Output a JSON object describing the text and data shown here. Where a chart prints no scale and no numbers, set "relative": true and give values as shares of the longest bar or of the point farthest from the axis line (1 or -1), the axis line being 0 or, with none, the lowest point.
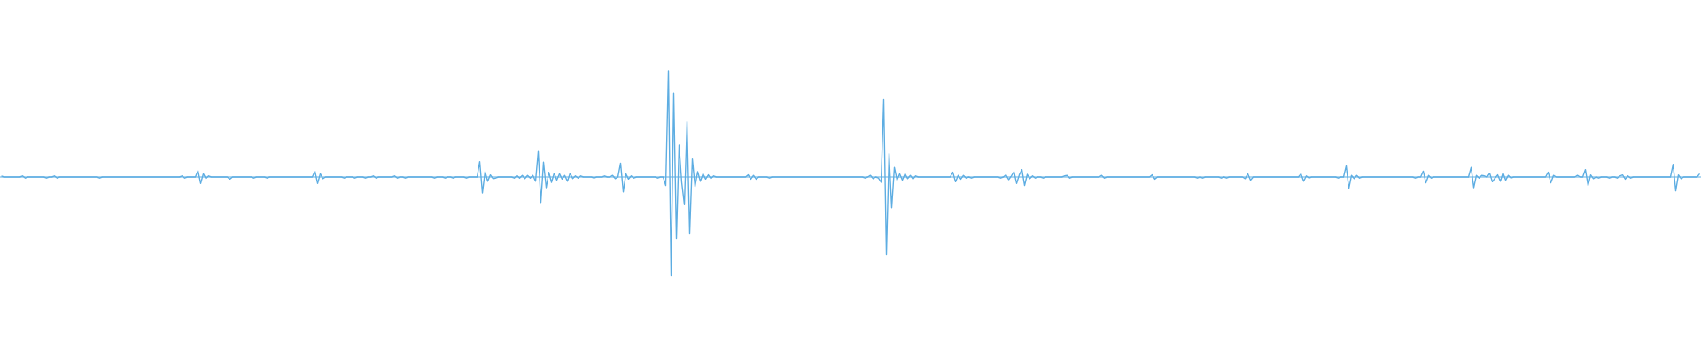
{
  "chart_data": {
    "type": "line",
    "relative": true,
    "ref_lines": [
      {
        "axis": "y",
        "value": 0,
        "color": "#5dade2"
      }
    ],
    "categories": [
      null,
      null,
      null,
      null,
      null,
      null,
      null,
      null,
      null,
      null,
      null,
      null,
      null,
      null,
      null,
      null,
      null,
      null,
      null,
      null,
      null,
      null,
      null,
      null,
      null,
      null,
      null,
      null,
      null,
      null,
      null,
      null,
      null,
      null,
      null,
      null,
      null,
      null,
      null,
      null,
      null,
      null,
      null,
      null,
      null,
      null,
      null,
      null,
      null,
      null,
      null,
      null,
      null,
      null,
      null,
      null,
      null,
      null,
      null,
      null,
      null,
      null,
      null,
      null,
      null,
      null,
      null,
      null,
      null,
      null,
      null,
      null,
      null,
      null,
      null,
      null,
      null,
      null,
      null,
      null,
      null,
      null,
      null,
      null,
      null,
      null,
      null,
      null,
      null,
      null,
      null,
      null,
      null,
      null,
      null,
      null,
      null,
      null,
      null,
      null,
      null,
      null,
      null,
      null,
      null,
      null,
      null,
      null,
      null,
      null,
      null,
      null,
      null,
      null,
      null,
      null,
      null,
      null,
      null,
      null,
      null,
      null,
      null,
      null,
      null,
      null,
      null,
      null,
      null,
      null,
      null,
      null,
      null,
      null,
      null,
      null,
      null,
      null,
      null,
      null,
      null,
      null,
      null,
      null,
      null,
      null,
      null,
      null,
      null,
      null,
      null,
      null,
      null,
      null,
      null,
      null,
      null,
      null,
      null,
      null,
      null,
      null,
      null,
      null,
      null,
      null,
      null,
      null,
      null,
      null,
      null,
      null,
      null,
      null,
      null,
      null,
      null,
      null,
      null,
      null,
      null,
      null,
      null,
      null,
      null,
      null,
      null,
      null,
      null,
      null,
      null,
      null,
      null,
      null,
      null,
      null,
      null,
      null,
      null,
      null,
      null,
      null,
      null,
      null,
      null,
      null,
      null,
      null,
      null,
      null,
      null,
      null,
      null,
      null,
      null,
      null,
      null,
      null,
      null,
      null,
      null,
      null,
      null,
      null,
      null,
      null,
      null,
      null,
      null,
      null,
      null,
      null,
      null,
      null,
      null,
      null,
      null,
      null,
      null,
      null,
      null,
      null,
      null,
      null,
      null,
      null,
      null,
      null,
      null,
      null,
      null,
      null,
      null,
      null,
      null,
      null,
      null,
      null,
      null,
      null,
      null,
      null,
      null,
      null,
      null,
      null,
      null,
      null,
      null,
      null,
      null,
      null,
      null,
      null,
      null,
      null,
      null,
      null,
      null,
      null,
      null,
      null,
      null,
      null,
      null,
      null,
      null,
      null,
      null,
      null,
      null,
      null,
      null,
      null,
      null,
      null,
      null,
      null,
      null,
      null,
      null,
      null,
      null,
      null,
      null,
      null,
      null,
      null,
      null,
      null,
      null,
      null,
      null,
      null,
      null,
      null,
      null,
      null,
      null,
      null,
      null,
      null,
      null,
      null,
      null,
      null,
      null,
      null,
      null,
      null,
      null,
      null,
      null,
      null,
      null,
      null,
      null,
      null,
      null,
      null,
      null,
      null,
      null,
      null,
      null,
      null,
      null,
      null,
      null,
      null,
      null,
      null,
      null,
      null,
      null,
      null,
      null,
      null,
      null,
      null,
      null,
      null,
      null,
      null,
      null,
      null,
      null,
      null,
      null,
      null,
      null,
      null,
      null,
      null,
      null,
      null,
      null,
      null,
      null,
      null,
      null,
      null,
      null,
      null,
      null,
      null,
      null,
      null,
      null,
      null,
      null,
      null,
      null,
      null,
      null,
      null,
      null,
      null,
      null,
      null,
      null,
      null,
      null,
      null,
      null,
      null,
      null,
      null,
      null,
      null,
      null,
      null,
      null,
      null,
      null,
      null,
      null,
      null,
      null,
      null,
      null,
      null,
      null,
      null,
      null,
      null,
      null,
      null,
      null,
      null,
      null,
      null,
      null,
      null,
      null,
      null,
      null,
      null,
      null,
      null,
      null,
      null,
      null,
      null,
      null,
      null,
      null,
      null,
      null,
      null,
      null,
      null,
      null,
      null,
      null,
      null,
      null,
      null,
      null,
      null,
      null,
      null,
      null,
      null,
      null,
      null,
      null,
      null,
      null,
      null,
      null,
      null,
      null,
      null,
      null,
      null,
      null,
      null,
      null,
      null,
      null,
      null,
      null,
      null,
      null,
      null,
      null,
      null,
      null,
      null,
      null,
      null,
      null,
      null,
      null,
      null,
      null,
      null,
      null,
      null,
      null,
      null,
      null,
      null,
      null,
      null,
      null,
      null,
      null,
      null,
      null,
      null,
      null,
      null,
      null,
      null,
      null,
      null,
      null,
      null,
      null,
      null,
      null,
      null,
      null,
      null,
      null,
      null,
      null,
      null,
      null,
      null,
      null,
      null,
      null,
      null,
      null,
      null,
      null,
      null,
      null,
      null,
      null,
      null,
      null,
      null,
      null,
      null,
      null,
      null,
      null,
      null,
      null,
      null,
      null,
      null,
      null,
      null,
      null,
      null,
      null,
      null,
      null,
      null,
      null,
      null,
      null,
      null,
      null,
      null,
      null,
      null,
      null,
      null,
      null,
      null,
      null,
      null,
      null,
      null,
      null,
      null,
      null,
      null,
      null,
      null,
      null,
      null,
      null,
      null,
      null,
      null,
      null,
      null,
      null,
      null,
      null,
      null,
      null,
      null,
      null,
      null,
      null,
      null,
      null,
      null,
      null,
      null,
      null,
      null,
      null,
      null,
      null,
      null,
      null,
      null,
      null,
      null,
      null,
      null,
      null,
      null,
      null,
      null,
      null,
      null,
      null,
      null,
      null,
      null,
      null,
      null,
      null,
      null,
      null,
      null,
      null,
      null,
      null,
      null
    ],
    "series": [
      {
        "color": "#5dade2",
        "values": [
          0.01,
          0,
          0,
          0,
          0,
          0,
          0,
          0,
          0.01,
          -0.01,
          0,
          0,
          0,
          0,
          0,
          0,
          0,
          -0.01,
          0,
          0,
          0.01,
          -0.01,
          0,
          0,
          0,
          0,
          0,
          0,
          0,
          0,
          0,
          0,
          0,
          0,
          0,
          0,
          0,
          -0.01,
          0,
          0,
          0,
          0,
          0,
          0,
          0,
          0,
          0,
          0,
          0,
          0,
          0,
          0,
          0,
          0,
          0,
          0,
          0,
          0,
          0,
          0,
          0,
          0,
          0,
          0,
          0,
          0,
          0,
          0,
          0.01,
          -0.01,
          0,
          0,
          0,
          0,
          0.06,
          -0.06,
          0.03,
          -0.015,
          0.01,
          0,
          0,
          0,
          0,
          0,
          0,
          0,
          -0.02,
          0,
          0,
          0,
          0,
          0,
          0,
          0,
          0,
          -0.01,
          0,
          0,
          0,
          0,
          -0.01,
          0,
          0,
          0,
          0,
          0,
          0,
          0,
          0,
          0,
          0,
          0,
          0,
          0,
          0,
          0,
          0,
          0,
          0.055,
          -0.06,
          0.03,
          -0.015,
          0,
          0,
          0,
          0,
          0,
          0,
          0,
          -0.01,
          0,
          0,
          0,
          -0.01,
          0,
          0,
          0,
          -0.01,
          0,
          0,
          0.01,
          -0.01,
          0,
          0,
          0,
          0,
          0,
          0,
          0.01,
          -0.01,
          0,
          0,
          -0.01,
          0,
          0,
          0,
          0,
          0,
          0,
          0,
          0,
          0,
          0,
          -0.01,
          0,
          0,
          0,
          -0.01,
          0,
          0,
          -0.01,
          0,
          0,
          0,
          0,
          -0.01,
          0,
          0,
          0,
          0,
          0.145,
          -0.15,
          0.05,
          -0.04,
          0.02,
          -0.015,
          -0.01,
          0,
          0,
          0,
          0,
          0,
          0,
          -0.01,
          0.015,
          -0.01,
          0.015,
          -0.015,
          0.015,
          -0.01,
          0.015,
          -0.04,
          0.24,
          -0.24,
          0.14,
          -0.1,
          0.045,
          -0.05,
          0.035,
          -0.03,
          0.03,
          -0.02,
          0.015,
          -0.04,
          0.035,
          -0.015,
          0.01,
          -0.01,
          0.01,
          0,
          0,
          0,
          0,
          -0.01,
          0,
          0,
          0,
          0.01,
          0,
          0,
          0.015,
          -0.015,
          0,
          0.13,
          -0.14,
          0.03,
          -0.02,
          0.01,
          -0.01,
          0,
          0,
          0,
          0,
          0,
          0,
          0,
          0,
          -0.01,
          0,
          0,
          -0.08,
          1.0,
          -0.93,
          0.79,
          -0.58,
          0.3,
          -0.05,
          -0.26,
          0.52,
          -0.53,
          0.17,
          -0.09,
          0.05,
          -0.04,
          0.03,
          -0.02,
          0.02,
          -0.015,
          0.01,
          0,
          0,
          0,
          0,
          0,
          0,
          0,
          0,
          0,
          0,
          0,
          0,
          0.02,
          -0.02,
          0.015,
          -0.02,
          0,
          0,
          0,
          0,
          -0.01,
          0,
          0,
          0,
          0,
          0,
          0,
          0,
          0,
          0,
          0,
          0,
          0,
          0,
          0,
          0,
          0,
          0,
          0,
          0,
          0,
          0,
          0,
          0,
          0,
          0,
          0,
          0,
          0,
          0,
          0,
          0,
          0,
          0,
          0,
          0,
          -0.01,
          0,
          0.015,
          -0.015,
          0,
          -0.01,
          -0.05,
          0.73,
          -0.73,
          0.22,
          -0.29,
          0.09,
          -0.03,
          0.03,
          -0.03,
          0.03,
          -0.015,
          0.015,
          -0.02,
          0.01,
          0,
          0,
          0,
          0,
          0,
          0,
          0,
          0,
          0,
          0,
          0,
          0,
          0,
          0.045,
          -0.045,
          0.015,
          -0.02,
          0.015,
          -0.01,
          0,
          -0.01,
          0,
          0,
          0,
          0,
          0,
          0,
          0,
          0,
          0,
          0,
          -0.01,
          0,
          0.02,
          -0.025,
          0.01,
          0.05,
          -0.06,
          0.02,
          0.07,
          -0.08,
          0.025,
          -0.015,
          0.01,
          -0.01,
          0,
          0,
          -0.01,
          0,
          0,
          0,
          0,
          0,
          0,
          0,
          0.01,
          0.015,
          -0.01,
          0,
          0,
          0,
          0,
          0,
          0,
          0,
          0,
          0,
          0,
          0,
          0.015,
          -0.01,
          0,
          0,
          0,
          0,
          0,
          0,
          0,
          0,
          0,
          0,
          0,
          0,
          0,
          0,
          0,
          0,
          0,
          0.02,
          -0.02,
          0,
          0,
          0,
          0,
          0,
          0,
          0,
          0,
          0,
          0,
          0,
          0,
          0,
          0,
          0,
          -0.01,
          0,
          -0.01,
          0,
          0,
          0,
          0,
          0,
          0,
          -0.01,
          0,
          -0.01,
          0,
          0,
          0,
          0,
          0,
          0,
          -0.015,
          0.03,
          -0.03,
          0,
          0,
          0,
          0,
          0,
          0,
          0,
          0,
          0,
          0,
          0,
          0,
          0,
          0,
          0,
          0,
          0,
          0,
          0.03,
          -0.04,
          0.01,
          -0.01,
          0,
          0,
          0,
          0,
          0,
          0,
          0,
          0,
          0,
          0,
          -0.01,
          0,
          0,
          0.105,
          -0.11,
          0.015,
          -0.015,
          0.015,
          -0.01,
          0,
          0,
          0,
          0,
          0,
          0,
          0,
          0,
          0,
          0,
          0,
          0,
          0,
          0,
          0,
          0,
          0,
          0,
          0,
          0,
          -0.01,
          0,
          0,
          0.055,
          -0.055,
          0.015,
          -0.01,
          0,
          0,
          0,
          0,
          0,
          0,
          0,
          0,
          0,
          0,
          0,
          0,
          0,
          0,
          0.09,
          -0.1,
          0.015,
          -0.01,
          0.015,
          0.01,
          0,
          0.035,
          -0.045,
          -0.01,
          0.02,
          -0.04,
          0.04,
          -0.03,
          0.015,
          -0.01,
          0,
          0,
          0,
          0,
          0,
          0,
          0,
          0,
          0,
          0,
          0,
          0,
          0,
          0.045,
          -0.055,
          0.015,
          0,
          0,
          0,
          0,
          0,
          0,
          0,
          0,
          0.015,
          0,
          0,
          0.07,
          -0.08,
          0.02,
          -0.015,
          0,
          -0.01,
          0,
          0,
          0,
          -0.01,
          0,
          0,
          -0.01,
          0.01,
          0.02,
          -0.02,
          0.01,
          -0.01,
          0,
          0,
          0,
          0,
          0,
          0,
          0,
          0,
          0,
          0,
          0,
          0,
          0,
          0,
          0,
          0.12,
          -0.13,
          0.02,
          -0.015,
          0,
          0,
          0,
          0,
          0,
          0,
          0.03
        ]
      }
    ]
  }
}
